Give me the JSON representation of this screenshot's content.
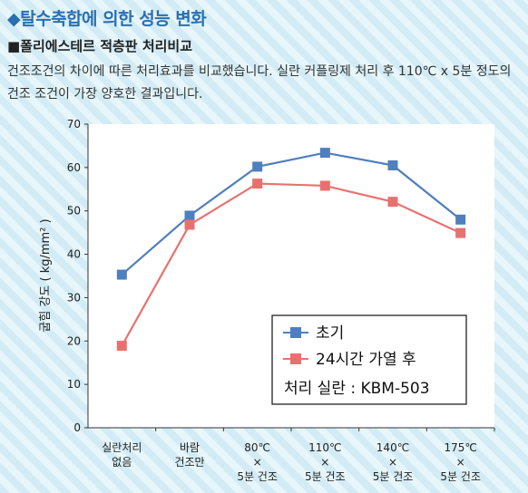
{
  "header": {
    "title": "◆탈수축합에 의한 성능 변화",
    "subtitle": "■폴리에스테르 적층판 처리비교",
    "description": "건조조건의 차이에 따른 처리효과를 비교했습니다. 실란 커플링제 처리 후 110℃ x 5분 정도의 건조 조건이 가장 양호한 결과입니다."
  },
  "chart_data": {
    "type": "line",
    "ylabel": "굽힘 강도 ( kg/mm² )",
    "ylim": [
      0,
      70
    ],
    "yticks": [
      0,
      10,
      20,
      30,
      40,
      50,
      60,
      70
    ],
    "categories": [
      [
        "실란처리",
        "없음"
      ],
      [
        "바람",
        "건조만"
      ],
      [
        "80℃",
        "×",
        "5분 건조"
      ],
      [
        "110℃",
        "×",
        "5분 건조"
      ],
      [
        "140℃",
        "×",
        "5분 건조"
      ],
      [
        "175℃",
        "×",
        "5분 건조"
      ]
    ],
    "series": [
      {
        "name": "초기",
        "color": "#4f7fbf",
        "values": [
          35.3,
          48.9,
          60.2,
          63.4,
          60.5,
          48.0
        ]
      },
      {
        "name": "24시간 가열 후",
        "color": "#e8716f",
        "values": [
          18.9,
          46.8,
          56.3,
          55.8,
          52.1,
          44.9
        ]
      }
    ],
    "legend_note": "처리 실란 :  KBM-503",
    "legend_position": "bottom-right",
    "grid": false
  }
}
